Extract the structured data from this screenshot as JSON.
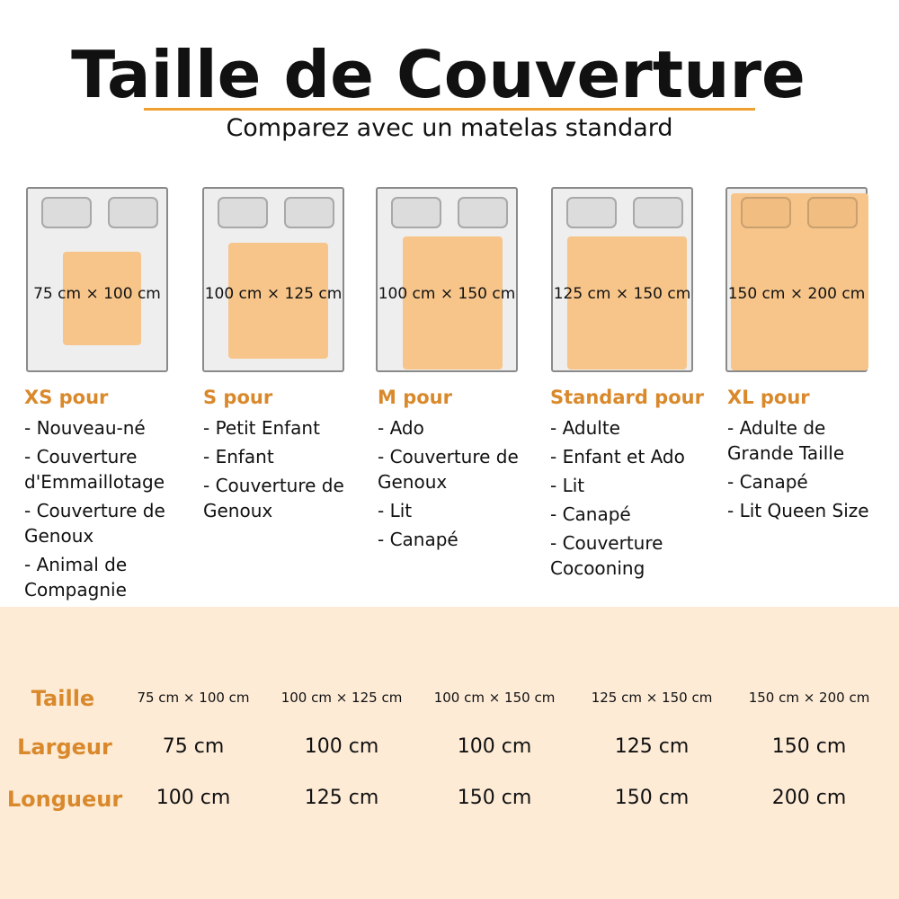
{
  "header": {
    "title": "Taille de Couverture",
    "subtitle": "Comparez avec un matelas standard"
  },
  "colors": {
    "accent": "#d9892b",
    "blanket": "#f7c58a",
    "band": "#fdebd6",
    "rule": "#f0a030"
  },
  "sizes": [
    {
      "dimension": "75 cm × 100 cm",
      "heading": "XS pour",
      "items": [
        "- Nouveau-né",
        "- Couverture d'Emmaillotage",
        "- Couverture de Genoux",
        "- Animal de Compagnie"
      ]
    },
    {
      "dimension": "100 cm × 125 cm",
      "heading": "S pour",
      "items": [
        "- Petit Enfant",
        "- Enfant",
        "- Couverture de Genoux"
      ]
    },
    {
      "dimension": "100 cm × 150 cm",
      "heading": "M pour",
      "items": [
        "- Ado",
        "- Couverture de Genoux",
        "- Lit",
        "- Canapé"
      ]
    },
    {
      "dimension": "125 cm × 150 cm",
      "heading": "Standard pour",
      "items": [
        "- Adulte",
        "- Enfant et Ado",
        "- Lit",
        "- Canapé",
        "- Couverture Cocooning"
      ]
    },
    {
      "dimension": "150 cm × 200 cm",
      "heading": "XL pour",
      "items": [
        "- Adulte de Grande Taille",
        "- Canapé",
        "- Lit Queen Size"
      ]
    }
  ],
  "table": {
    "row_labels": [
      "Taille",
      "Largeur",
      "Longueur"
    ],
    "taille": [
      "75 cm × 100 cm",
      "100 cm × 125 cm",
      "100 cm × 150 cm",
      "125 cm × 150 cm",
      "150 cm × 200 cm"
    ],
    "largeur": [
      "75 cm",
      "100 cm",
      "100 cm",
      "125 cm",
      "150 cm"
    ],
    "longueur": [
      "100 cm",
      "125 cm",
      "150 cm",
      "150 cm",
      "200 cm"
    ]
  }
}
